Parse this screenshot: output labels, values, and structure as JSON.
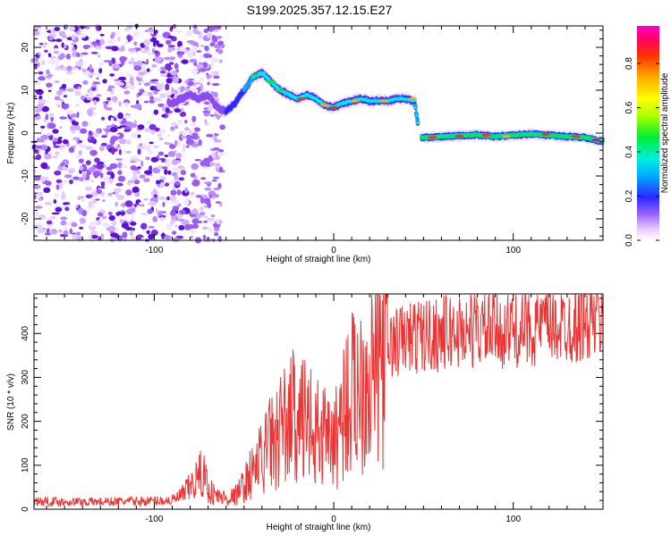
{
  "title": "S199.2025.357.12.15.E27",
  "chart_data": [
    {
      "type": "heatmap",
      "xlabel": "Height of straight line (km)",
      "ylabel": "Frequency (Hz)",
      "xlim": [
        -167,
        150
      ],
      "ylim": [
        -25,
        25
      ],
      "xticks": [
        -100,
        0,
        100
      ],
      "yticks": [
        -20,
        -10,
        0,
        10,
        20
      ],
      "ridge": {
        "x": [
          -90,
          -85,
          -80,
          -75,
          -70,
          -65,
          -60,
          -55,
          -50,
          -45,
          -40,
          -35,
          -30,
          -25,
          -20,
          -15,
          -10,
          -5,
          0,
          5,
          10,
          15,
          20,
          25,
          30,
          35,
          40,
          45,
          48,
          55,
          60,
          70,
          80,
          90,
          100,
          110,
          120,
          130,
          140,
          148
        ],
        "freq": [
          7,
          8,
          9,
          8,
          9,
          6,
          5,
          7,
          10,
          13,
          14,
          12,
          10,
          9,
          8,
          9,
          8,
          6.5,
          6,
          7,
          7.5,
          8,
          7.5,
          7.5,
          7.5,
          8,
          8,
          7.5,
          -1,
          -1,
          -0.8,
          -0.6,
          -0.4,
          -0.8,
          -0.5,
          -0.2,
          -0.5,
          -0.8,
          -1,
          -1.8
        ]
      }
    },
    {
      "type": "line",
      "xlabel": "Height of straight line (km)",
      "ylabel": "SNR (10 * v/v)",
      "xlim": [
        -167,
        150
      ],
      "ylim": [
        0,
        490
      ],
      "xticks": [
        -100,
        0,
        100
      ],
      "yticks": [
        0,
        100,
        200,
        300,
        400
      ],
      "series": [
        {
          "name": "SNR",
          "color": "#ee3333",
          "x": [
            -167,
            -150,
            -130,
            -110,
            -90,
            -85,
            -80,
            -75,
            -72,
            -70,
            -65,
            -60,
            -55,
            -50,
            -45,
            -40,
            -35,
            -30,
            -25,
            -20,
            -15,
            -10,
            -5,
            0,
            5,
            10,
            15,
            20,
            25,
            30,
            40,
            50,
            60,
            70,
            80,
            90,
            100,
            110,
            120,
            130,
            140,
            150
          ],
          "values": [
            18,
            17,
            17,
            18,
            20,
            30,
            50,
            75,
            80,
            45,
            30,
            25,
            30,
            55,
            90,
            120,
            150,
            180,
            200,
            210,
            190,
            175,
            160,
            150,
            230,
            260,
            290,
            320,
            350,
            370,
            390,
            395,
            400,
            405,
            410,
            405,
            410,
            415,
            420,
            420,
            425,
            430
          ]
        }
      ]
    }
  ],
  "colorbar": {
    "label": "Normalized spectral amplitude",
    "ticks": [
      "0.0",
      "0.2",
      "0.4",
      "0.6",
      "0.8"
    ],
    "range": [
      0,
      0.97
    ]
  }
}
